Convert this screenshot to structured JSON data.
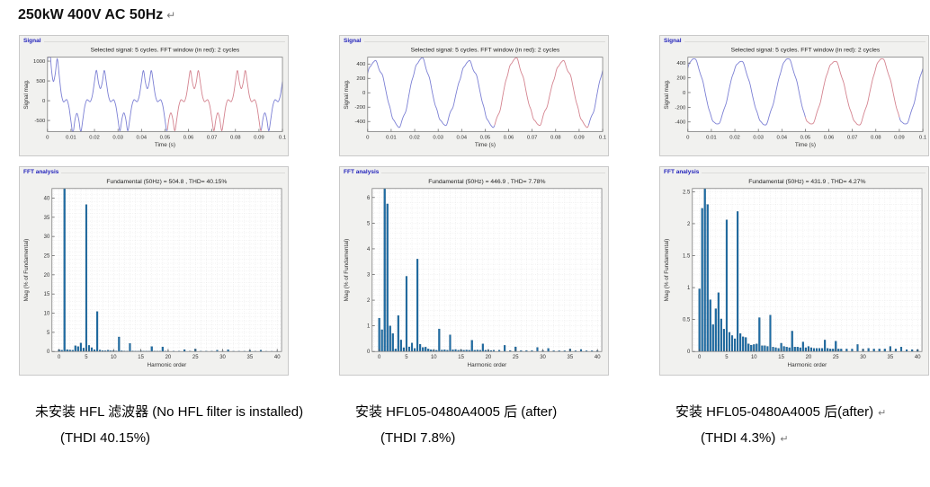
{
  "page": {
    "title": "250kW 400V AC 50Hz",
    "return_mark": "↵"
  },
  "colors": {
    "bar-color": "#1e6da6",
    "bar-edge": "#0d4a75",
    "sig-blue": "#7b7fd4",
    "sig-red": "#d4838f",
    "panel-label": "#2222bb"
  },
  "panels": [
    {
      "signal_label": "Signal",
      "fft_label": "FFT analysis"
    },
    {
      "signal_label": "Signal",
      "fft_label": "FFT analysis"
    },
    {
      "signal_label": "Signal",
      "fft_label": "FFT analysis"
    }
  ],
  "captions": [
    {
      "line1": "未安装 HFL 滤波器 (No HFL filter is installed)",
      "mark1": "",
      "line2": "(THDI 40.15%)",
      "mark2": ""
    },
    {
      "line1": "安装 HFL05-0480A4005 后 (after)",
      "mark1": "",
      "line2": "(THDI 7.8%)",
      "mark2": ""
    },
    {
      "line1": "安装 HFL05-0480A4005 后(after)",
      "mark1": "↵",
      "line2": "(THDI 4.3%)",
      "mark2": "↵"
    }
  ],
  "chart_data": [
    {
      "type": "line",
      "title": "Selected signal: 5 cycles. FFT window (in red): 2 cycles",
      "xlabel": "Time (s)",
      "ylabel": "Signal mag.",
      "xlim": [
        0,
        0.1
      ],
      "ylim": [
        -780,
        1100
      ],
      "xticks": [
        0,
        0.01,
        0.02,
        0.03,
        0.04,
        0.05,
        0.06,
        0.07,
        0.08,
        0.09,
        0.1
      ],
      "yticks": [
        -500,
        0,
        500,
        1000
      ],
      "red_window": [
        0.051,
        0.091
      ],
      "waveform": {
        "amp": 560,
        "f0": 50,
        "harmonics": [
          [
            1,
            1,
            0.7854
          ],
          [
            5,
            0.383,
            0.7854
          ],
          [
            7,
            0.104,
            5.4978
          ],
          [
            11,
            0.038,
            5.4978
          ],
          [
            13,
            0.021,
            3.927
          ],
          [
            17,
            0.013,
            3.927
          ],
          [
            19,
            0.012,
            2.3562
          ]
        ],
        "transient": {
          "mult": 1.1,
          "tau": 0.004
        }
      }
    },
    {
      "type": "bar",
      "title": "Fundamental (50Hz) = 504.8 , THD= 40.15%",
      "xlabel": "Harmonic order",
      "ylabel": "Mag (% of Fundamental)",
      "xlim": [
        -1.3,
        40.8
      ],
      "ylim": [
        0,
        42.5
      ],
      "xticks": [
        0,
        5,
        10,
        15,
        20,
        25,
        30,
        35,
        40
      ],
      "yticks": [
        0,
        5,
        10,
        15,
        20,
        25,
        30,
        35,
        40
      ],
      "grid": {
        "x_step": 1,
        "y_step": 1
      },
      "bars": [
        [
          0,
          0.5
        ],
        [
          0.5,
          0.35
        ],
        [
          1,
          100
        ],
        [
          1.5,
          0.5
        ],
        [
          2,
          0.4
        ],
        [
          2.5,
          0.35
        ],
        [
          3,
          1.5
        ],
        [
          3.5,
          1.3
        ],
        [
          4,
          2.2
        ],
        [
          4.5,
          0.9
        ],
        [
          5,
          38.3
        ],
        [
          5.5,
          1.6
        ],
        [
          6,
          1.0
        ],
        [
          6.5,
          0.5
        ],
        [
          7,
          10.4
        ],
        [
          7.5,
          0.4
        ],
        [
          8,
          0.25
        ],
        [
          8.5,
          0.2
        ],
        [
          9,
          0.35
        ],
        [
          9.5,
          0.2
        ],
        [
          10,
          0.25
        ],
        [
          10.5,
          0.15
        ],
        [
          11,
          3.8
        ],
        [
          11.5,
          0.2
        ],
        [
          12,
          0.15
        ],
        [
          12.5,
          0.12
        ],
        [
          13,
          2.1
        ],
        [
          13.5,
          0.15
        ],
        [
          14,
          0.12
        ],
        [
          14.5,
          0.1
        ],
        [
          15,
          0.18
        ],
        [
          15.5,
          0.1
        ],
        [
          16,
          0.12
        ],
        [
          16.5,
          0.1
        ],
        [
          17,
          1.3
        ],
        [
          17.5,
          0.12
        ],
        [
          18,
          0.1
        ],
        [
          18.5,
          0.1
        ],
        [
          19,
          1.2
        ],
        [
          19.5,
          0.1
        ],
        [
          20,
          0.12
        ],
        [
          21,
          0.1
        ],
        [
          22,
          0.1
        ],
        [
          23,
          0.5
        ],
        [
          24,
          0.1
        ],
        [
          25,
          0.65
        ],
        [
          26,
          0.1
        ],
        [
          27,
          0.1
        ],
        [
          28,
          0.1
        ],
        [
          29,
          0.35
        ],
        [
          30,
          0.1
        ],
        [
          31,
          0.45
        ],
        [
          32,
          0.08
        ],
        [
          33,
          0.08
        ],
        [
          34,
          0.08
        ],
        [
          35,
          0.3
        ],
        [
          36,
          0.08
        ],
        [
          37,
          0.33
        ],
        [
          38,
          0.06
        ],
        [
          39,
          0.06
        ],
        [
          40,
          0.06
        ]
      ]
    },
    {
      "type": "line",
      "title": "Selected signal: 5 cycles. FFT window (in red): 2 cycles",
      "xlabel": "Time (s)",
      "ylabel": "Signal mag.",
      "xlim": [
        0,
        0.1
      ],
      "ylim": [
        -540,
        495
      ],
      "xticks": [
        0,
        0.01,
        0.02,
        0.03,
        0.04,
        0.05,
        0.06,
        0.07,
        0.08,
        0.09,
        0.1
      ],
      "yticks": [
        -400,
        -200,
        0,
        200,
        400
      ],
      "red_window": [
        0.054,
        0.094
      ],
      "waveform": {
        "amp": 452,
        "f0": 50,
        "harmonics": [
          [
            1,
            1,
            0.7
          ],
          [
            1.5,
            0.0575,
            4.0
          ],
          [
            3.5,
            0.014,
            0
          ],
          [
            5,
            0.029,
            3.1416
          ],
          [
            7,
            0.036,
            0
          ],
          [
            11,
            0.0088,
            0
          ],
          [
            13,
            0.0065,
            0
          ]
        ]
      }
    },
    {
      "type": "bar",
      "title": "Fundamental (50Hz) = 446.9 , THD= 7.78%",
      "xlabel": "Harmonic order",
      "ylabel": "Mag (% of Fundamental)",
      "xlim": [
        -1.3,
        40.8
      ],
      "ylim": [
        0,
        6.35
      ],
      "xticks": [
        0,
        5,
        10,
        15,
        20,
        25,
        30,
        35,
        40
      ],
      "yticks": [
        0,
        1,
        2,
        3,
        4,
        5,
        6
      ],
      "grid": {
        "x_step": 1,
        "y_step": 0.2
      },
      "bars": [
        [
          0,
          1.3
        ],
        [
          0.5,
          0.85
        ],
        [
          1,
          100
        ],
        [
          1.5,
          5.75
        ],
        [
          2,
          1.0
        ],
        [
          2.5,
          0.7
        ],
        [
          3,
          0.1
        ],
        [
          3.5,
          1.4
        ],
        [
          4,
          0.45
        ],
        [
          4.5,
          0.15
        ],
        [
          5,
          2.93
        ],
        [
          5.5,
          0.18
        ],
        [
          6,
          0.33
        ],
        [
          6.5,
          0.12
        ],
        [
          7,
          3.6
        ],
        [
          7.5,
          0.28
        ],
        [
          8,
          0.16
        ],
        [
          8.5,
          0.17
        ],
        [
          9,
          0.1
        ],
        [
          9.5,
          0.07
        ],
        [
          10,
          0.06
        ],
        [
          10.5,
          0.05
        ],
        [
          11,
          0.88
        ],
        [
          11.5,
          0.06
        ],
        [
          12,
          0.07
        ],
        [
          12.5,
          0.05
        ],
        [
          13,
          0.65
        ],
        [
          13.5,
          0.07
        ],
        [
          14,
          0.08
        ],
        [
          14.5,
          0.05
        ],
        [
          15,
          0.07
        ],
        [
          15.5,
          0.05
        ],
        [
          16,
          0.06
        ],
        [
          16.5,
          0.05
        ],
        [
          17,
          0.44
        ],
        [
          17.5,
          0.05
        ],
        [
          18,
          0.06
        ],
        [
          18.5,
          0.05
        ],
        [
          19,
          0.3
        ],
        [
          19.5,
          0.05
        ],
        [
          20,
          0.06
        ],
        [
          20.5,
          0.04
        ],
        [
          21,
          0.05
        ],
        [
          22,
          0.05
        ],
        [
          23,
          0.24
        ],
        [
          24,
          0.04
        ],
        [
          25,
          0.18
        ],
        [
          26,
          0.04
        ],
        [
          27,
          0.04
        ],
        [
          28,
          0.04
        ],
        [
          29,
          0.16
        ],
        [
          30,
          0.04
        ],
        [
          31,
          0.12
        ],
        [
          32,
          0.03
        ],
        [
          33,
          0.03
        ],
        [
          34,
          0.03
        ],
        [
          35,
          0.1
        ],
        [
          36,
          0.03
        ],
        [
          37,
          0.08
        ],
        [
          38,
          0.03
        ],
        [
          39,
          0.03
        ],
        [
          40,
          0.03
        ]
      ]
    },
    {
      "type": "line",
      "title": "Selected signal: 5 cycles. FFT window (in red): 2 cycles",
      "xlabel": "Time (s)",
      "ylabel": "Signal mag.",
      "xlim": [
        0,
        0.1
      ],
      "ylim": [
        -530,
        480
      ],
      "xticks": [
        0,
        0.01,
        0.02,
        0.03,
        0.04,
        0.05,
        0.06,
        0.07,
        0.08,
        0.09,
        0.1
      ],
      "yticks": [
        -400,
        -200,
        0,
        200,
        400
      ],
      "red_window": [
        0.05,
        0.09
      ],
      "waveform": {
        "amp": 438,
        "f0": 50,
        "harmonics": [
          [
            1,
            1,
            0.85
          ],
          [
            0.5,
            0.0224,
            0.5
          ],
          [
            1.5,
            0.023,
            0
          ],
          [
            2,
            0.0081,
            0
          ],
          [
            3.5,
            0.0092,
            0
          ],
          [
            5,
            0.0206,
            3.1416
          ],
          [
            7,
            0.0219,
            0
          ],
          [
            11,
            0.0053,
            0
          ],
          [
            13,
            0.0057,
            0
          ]
        ]
      }
    },
    {
      "type": "bar",
      "title": "Fundamental (50Hz) = 431.9 , THD= 4.27%",
      "xlabel": "Harmonic order",
      "ylabel": "Mag (% of Fundamental)",
      "xlim": [
        -1.3,
        40.8
      ],
      "ylim": [
        0,
        2.55
      ],
      "xticks": [
        0,
        5,
        10,
        15,
        20,
        25,
        30,
        35,
        40
      ],
      "yticks": [
        0,
        0.5,
        1,
        1.5,
        2,
        2.5
      ],
      "grid": {
        "x_step": 1,
        "y_step": 0.1
      },
      "bars": [
        [
          0,
          0.98
        ],
        [
          0.5,
          2.24
        ],
        [
          1,
          100
        ],
        [
          1.5,
          2.3
        ],
        [
          2,
          0.81
        ],
        [
          2.5,
          0.42
        ],
        [
          3,
          0.67
        ],
        [
          3.5,
          0.92
        ],
        [
          4,
          0.51
        ],
        [
          4.5,
          0.35
        ],
        [
          5,
          2.06
        ],
        [
          5.5,
          0.3
        ],
        [
          6,
          0.25
        ],
        [
          6.5,
          0.2
        ],
        [
          7,
          2.19
        ],
        [
          7.5,
          0.28
        ],
        [
          8,
          0.23
        ],
        [
          8.5,
          0.22
        ],
        [
          9,
          0.12
        ],
        [
          9.5,
          0.1
        ],
        [
          10,
          0.11
        ],
        [
          10.5,
          0.12
        ],
        [
          11,
          0.53
        ],
        [
          11.5,
          0.09
        ],
        [
          12,
          0.09
        ],
        [
          12.5,
          0.08
        ],
        [
          13,
          0.57
        ],
        [
          13.5,
          0.07
        ],
        [
          14,
          0.06
        ],
        [
          14.5,
          0.05
        ],
        [
          15,
          0.13
        ],
        [
          15.5,
          0.08
        ],
        [
          16,
          0.07
        ],
        [
          16.5,
          0.06
        ],
        [
          17,
          0.32
        ],
        [
          17.5,
          0.07
        ],
        [
          18,
          0.07
        ],
        [
          18.5,
          0.06
        ],
        [
          19,
          0.15
        ],
        [
          19.5,
          0.06
        ],
        [
          20,
          0.08
        ],
        [
          20.5,
          0.06
        ],
        [
          21,
          0.05
        ],
        [
          21.5,
          0.05
        ],
        [
          22,
          0.05
        ],
        [
          22.5,
          0.05
        ],
        [
          23,
          0.18
        ],
        [
          23.5,
          0.05
        ],
        [
          24,
          0.04
        ],
        [
          24.5,
          0.04
        ],
        [
          25,
          0.16
        ],
        [
          25.5,
          0.04
        ],
        [
          26,
          0.04
        ],
        [
          27,
          0.04
        ],
        [
          28,
          0.04
        ],
        [
          29,
          0.11
        ],
        [
          30,
          0.04
        ],
        [
          31,
          0.05
        ],
        [
          32,
          0.04
        ],
        [
          33,
          0.04
        ],
        [
          34,
          0.04
        ],
        [
          35,
          0.08
        ],
        [
          36,
          0.04
        ],
        [
          37,
          0.07
        ],
        [
          38,
          0.03
        ],
        [
          39,
          0.03
        ],
        [
          40,
          0.03
        ]
      ]
    }
  ]
}
